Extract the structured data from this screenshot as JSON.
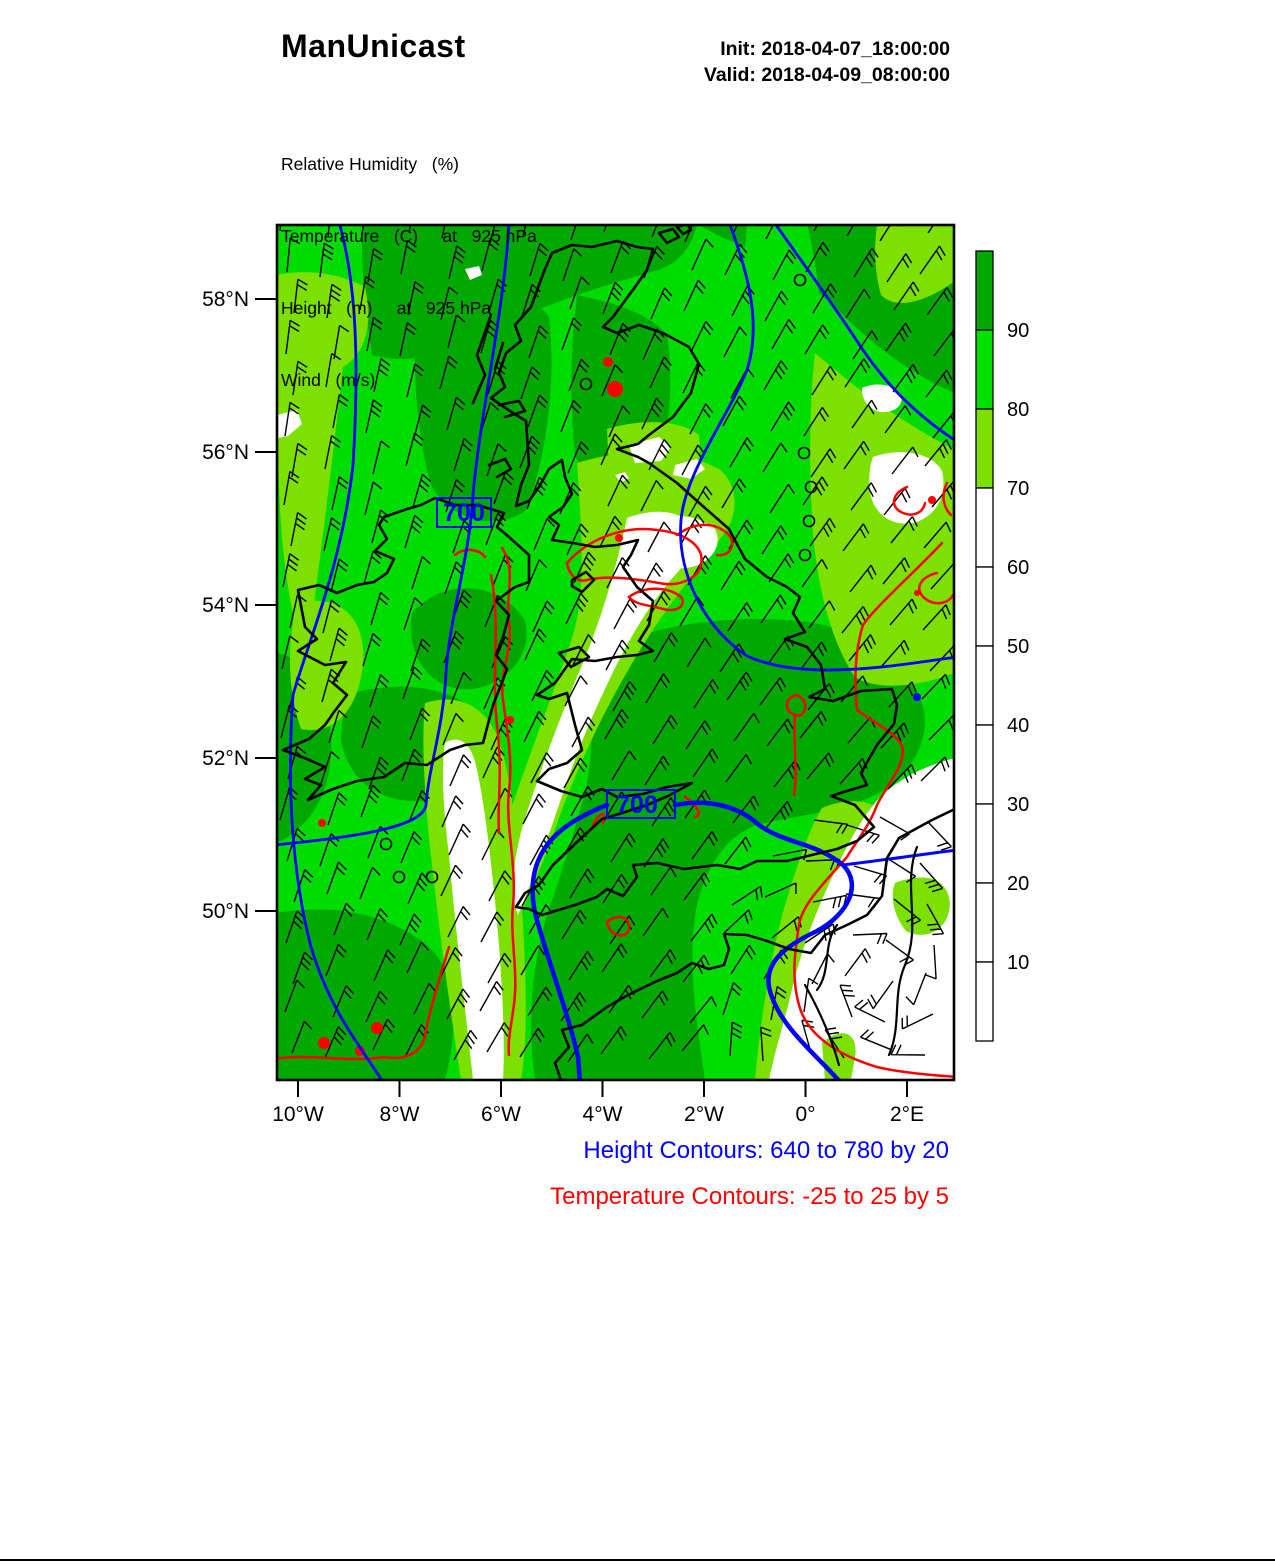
{
  "header": {
    "brand": "ManUnicast",
    "init_line": "Init: 2018-04-07_18:00:00",
    "valid_line": "Valid: 2018-04-09_08:00:00",
    "field_lines": [
      "Relative Humidity   (%)",
      "Temperature   (C)     at   925 hPa",
      "Height   (m)     at   925 hPa",
      "Wind   (m/s)"
    ]
  },
  "chart_data": {
    "type": "heatmap",
    "title": "ManUnicast",
    "region": "British Isles",
    "shaded_variable": "Relative Humidity (%)",
    "level": "925 hPa",
    "x_axis": {
      "ticks": [
        "10°W",
        "8°W",
        "6°W",
        "4°W",
        "2°W",
        "0°",
        "2°E"
      ]
    },
    "y_axis": {
      "ticks": [
        "58°N",
        "56°N",
        "54°N",
        "52°N",
        "50°N"
      ]
    },
    "colorbar": {
      "tick_labels": [
        "90",
        "80",
        "70",
        "60",
        "50",
        "40",
        "30",
        "20",
        "10"
      ],
      "segment_colors_top_to_bottom": [
        "#00a800",
        "#00e100",
        "#7ce000",
        "#ffffff",
        "#ffffff",
        "#ffffff",
        "#ffffff",
        "#ffffff",
        "#ffffff",
        "#ffffff"
      ]
    },
    "contour_labels": [
      "700",
      "700"
    ],
    "annotations": [
      {
        "text": "Height Contours: 640 to 780 by 20",
        "color": "#0000ff"
      },
      {
        "text": "Temperature Contours: -25 to 25 by 5",
        "color": "#ff0000"
      }
    ],
    "style_colors": {
      "height_contours": "#0000ff",
      "temperature_contours": "#ff0000",
      "coastlines": "#000000",
      "rh_90_100": "#00a800",
      "rh_80_90": "#00e100",
      "rh_70_80": "#7ce000",
      "rh_below_70": "#ffffff"
    }
  }
}
